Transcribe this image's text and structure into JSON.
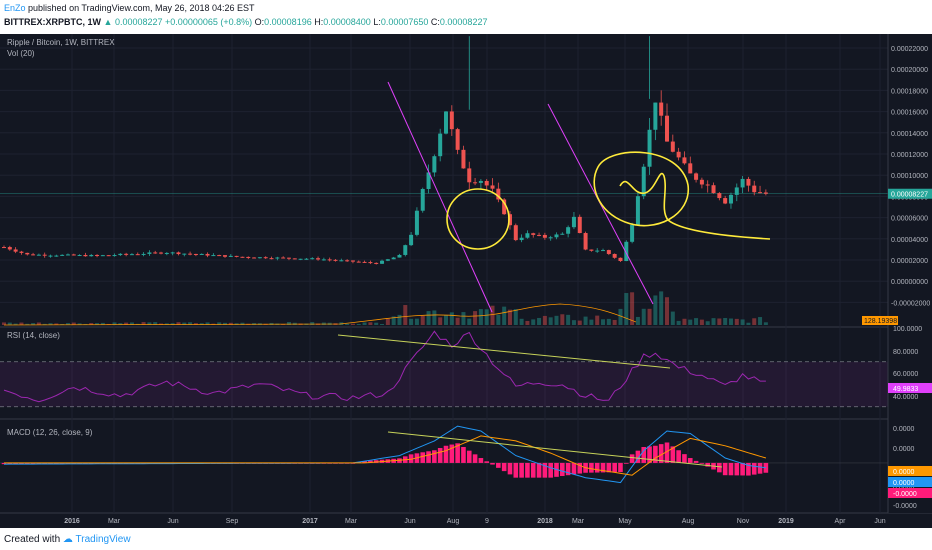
{
  "header": {
    "user": "EnZo",
    "published": "published on TradingView.com, May 26, 2018 04:26 EST",
    "symbol": "BITTREX:XRPBTC, 1W",
    "price": "0.00008227",
    "change": "+0.00000065 (+0.8%)",
    "o_label": "O:",
    "o": "0.00008196",
    "h_label": "H:",
    "h": "0.00008400",
    "l_label": "L:",
    "l": "0.00007650",
    "c_label": "C:",
    "c": "0.00008227"
  },
  "footer": {
    "created_with": "Created with",
    "brand": "TradingView"
  },
  "colors": {
    "background": "#131722",
    "up": "#26a69a",
    "down": "#ef5350",
    "rsi": "#9c27b0",
    "macd": "#2196f3",
    "signal": "#ff9800",
    "hist": "#ff1b7a",
    "drawing": "#ffeb3b",
    "trendline_magenta": "#e040fb"
  },
  "chart_data": [
    {
      "type": "candlestick",
      "title": "Ripple / Bitcoin, 1W, BITTREX",
      "indicator_label": "Vol (20)",
      "ylim": [
        -4e-05,
        0.00023
      ],
      "y_ticks": [
        "0.00022000",
        "0.00020000",
        "0.00018000",
        "0.00016000",
        "0.00014000",
        "0.00012000",
        "0.00010000",
        "0.00008000",
        "0.00006000",
        "0.00004000",
        "0.00002000",
        "0.00000000",
        "-0.00002000"
      ],
      "last_price_label": "0.00008227",
      "volume_label": "128.19398",
      "x_ticks": [
        "2016",
        "Mar",
        "Jun",
        "Sep",
        "2017",
        "Mar",
        "Jun",
        "Aug",
        "9",
        "2018",
        "Mar",
        "May",
        "Aug",
        "Nov",
        "2019",
        "Apr",
        "Jun"
      ],
      "anchors": [
        {
          "t": 0,
          "v": 3.3e-05
        },
        {
          "t": 4,
          "v": 2.6e-05
        },
        {
          "t": 16,
          "v": 2.5e-05
        },
        {
          "t": 28,
          "v": 2.8e-05
        },
        {
          "t": 40,
          "v": 2.4e-05
        },
        {
          "t": 54,
          "v": 2.2e-05
        },
        {
          "t": 64,
          "v": 1.8e-05
        },
        {
          "t": 68,
          "v": 2.5e-05
        },
        {
          "t": 70,
          "v": 4.5e-05
        },
        {
          "t": 72,
          "v": 8.5e-05
        },
        {
          "t": 74,
          "v": 0.00012
        },
        {
          "t": 76,
          "v": 0.00016
        },
        {
          "t": 78,
          "v": 0.00012
        },
        {
          "t": 80,
          "v": 9.5e-05
        },
        {
          "t": 82,
          "v": 9.5e-05
        },
        {
          "t": 84,
          "v": 8.5e-05
        },
        {
          "t": 86,
          "v": 6.5e-05
        },
        {
          "t": 88,
          "v": 4e-05
        },
        {
          "t": 90,
          "v": 4.5e-05
        },
        {
          "t": 93,
          "v": 4.2e-05
        },
        {
          "t": 96,
          "v": 4.5e-05
        },
        {
          "t": 98,
          "v": 6e-05
        },
        {
          "t": 100,
          "v": 3e-05
        },
        {
          "t": 103,
          "v": 3e-05
        },
        {
          "t": 106,
          "v": 2e-05
        },
        {
          "t": 108,
          "v": 5.5e-05
        },
        {
          "t": 110,
          "v": 0.00011
        },
        {
          "t": 112,
          "v": 0.00017
        },
        {
          "t": 114,
          "v": 0.00013
        },
        {
          "t": 116,
          "v": 0.000115
        },
        {
          "t": 118,
          "v": 0.0001
        },
        {
          "t": 121,
          "v": 9e-05
        },
        {
          "t": 124,
          "v": 7.5e-05
        },
        {
          "t": 127,
          "v": 9.5e-05
        },
        {
          "t": 129,
          "v": 8.5e-05
        },
        {
          "t": 131,
          "v": 8.23e-05
        }
      ]
    },
    {
      "type": "line",
      "title": "RSI (14, close)",
      "ylim": [
        20,
        100
      ],
      "y_ticks": [
        "100.0000",
        "80.0000",
        "60.0000",
        "40.0000"
      ],
      "bands": [
        30,
        70
      ],
      "last_value_label": "49.9833",
      "anchors": [
        {
          "t": 0,
          "v": 45
        },
        {
          "t": 6,
          "v": 36
        },
        {
          "t": 12,
          "v": 48
        },
        {
          "t": 20,
          "v": 40
        },
        {
          "t": 28,
          "v": 52
        },
        {
          "t": 36,
          "v": 42
        },
        {
          "t": 44,
          "v": 50
        },
        {
          "t": 52,
          "v": 40
        },
        {
          "t": 60,
          "v": 38
        },
        {
          "t": 66,
          "v": 42
        },
        {
          "t": 70,
          "v": 70
        },
        {
          "t": 74,
          "v": 96
        },
        {
          "t": 77,
          "v": 85
        },
        {
          "t": 80,
          "v": 95
        },
        {
          "t": 84,
          "v": 70
        },
        {
          "t": 88,
          "v": 48
        },
        {
          "t": 92,
          "v": 52
        },
        {
          "t": 96,
          "v": 50
        },
        {
          "t": 100,
          "v": 40
        },
        {
          "t": 104,
          "v": 35
        },
        {
          "t": 107,
          "v": 55
        },
        {
          "t": 110,
          "v": 75
        },
        {
          "t": 112,
          "v": 78
        },
        {
          "t": 116,
          "v": 65
        },
        {
          "t": 120,
          "v": 58
        },
        {
          "t": 124,
          "v": 48
        },
        {
          "t": 127,
          "v": 58
        },
        {
          "t": 131,
          "v": 50
        }
      ]
    },
    {
      "type": "line",
      "title": "MACD (12, 26, close, 9)",
      "ylim": [
        -4e-05,
        3.5e-05
      ],
      "y_ticks": [
        "0.0000",
        "0.0000",
        "0.0000",
        "0.0000",
        "-0.0000"
      ],
      "value_labels": {
        "signal": "0.0000",
        "macd": "0.0000",
        "hist": "-0.0000"
      },
      "series": [
        {
          "name": "MACD",
          "anchors": [
            {
              "t": 0,
              "v": -1e-06
            },
            {
              "t": 60,
              "v": 0
            },
            {
              "t": 68,
              "v": 6e-06
            },
            {
              "t": 74,
              "v": 1.8e-05
            },
            {
              "t": 78,
              "v": 3e-05
            },
            {
              "t": 82,
              "v": 2.6e-05
            },
            {
              "t": 88,
              "v": 6e-06
            },
            {
              "t": 94,
              "v": -4e-06
            },
            {
              "t": 100,
              "v": -1.2e-05
            },
            {
              "t": 106,
              "v": -1.6e-05
            },
            {
              "t": 110,
              "v": 1e-05
            },
            {
              "t": 114,
              "v": 2.6e-05
            },
            {
              "t": 118,
              "v": 2.4e-05
            },
            {
              "t": 124,
              "v": 4e-06
            },
            {
              "t": 128,
              "v": -2e-06
            },
            {
              "t": 131,
              "v": -4e-06
            }
          ]
        },
        {
          "name": "Signal",
          "anchors": [
            {
              "t": 0,
              "v": 0
            },
            {
              "t": 62,
              "v": 0
            },
            {
              "t": 70,
              "v": 3e-06
            },
            {
              "t": 76,
              "v": 1e-05
            },
            {
              "t": 82,
              "v": 2.2e-05
            },
            {
              "t": 88,
              "v": 1.8e-05
            },
            {
              "t": 94,
              "v": 8e-06
            },
            {
              "t": 100,
              "v": -4e-06
            },
            {
              "t": 108,
              "v": -1e-05
            },
            {
              "t": 112,
              "v": 4e-06
            },
            {
              "t": 118,
              "v": 2e-05
            },
            {
              "t": 124,
              "v": 1.4e-05
            },
            {
              "t": 131,
              "v": 4e-06
            }
          ]
        }
      ]
    }
  ]
}
